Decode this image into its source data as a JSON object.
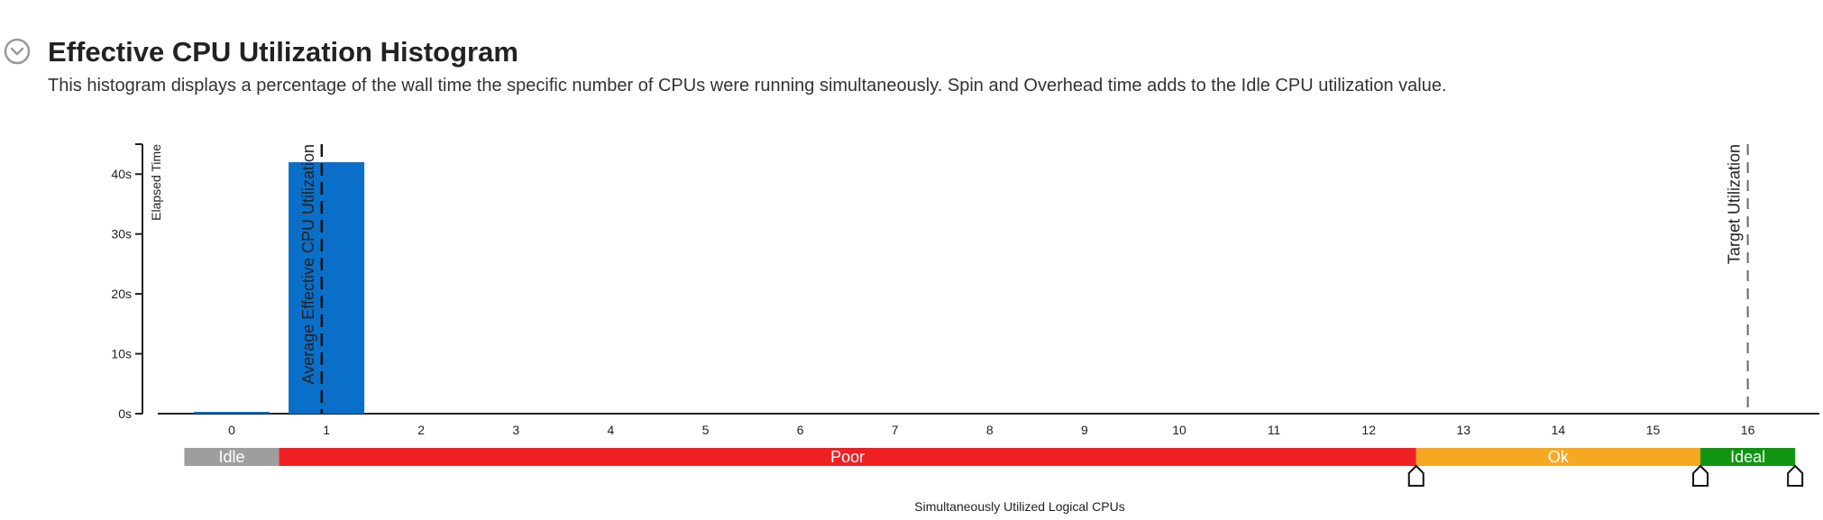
{
  "header": {
    "title": "Effective CPU Utilization Histogram",
    "description": "This histogram displays a percentage of the wall time the specific number of CPUs were running simultaneously. Spin and Overhead time adds to the Idle CPU utilization value."
  },
  "icons": {
    "collapse": "chevron-down-circle-icon"
  },
  "colors": {
    "bar": "#0a6fc8",
    "idle": "#9e9e9e",
    "poor": "#ee2024",
    "ok": "#f7a823",
    "ideal": "#129612"
  },
  "chart_data": {
    "type": "bar",
    "xlabel": "Simultaneously Utilized Logical CPUs",
    "ylabel": "Elapsed Time",
    "categories": [
      "0",
      "1",
      "2",
      "3",
      "4",
      "5",
      "6",
      "7",
      "8",
      "9",
      "10",
      "11",
      "12",
      "13",
      "14",
      "15",
      "16"
    ],
    "values": [
      0.3,
      42,
      0,
      0,
      0,
      0,
      0,
      0,
      0,
      0,
      0,
      0,
      0,
      0,
      0,
      0,
      0
    ],
    "ylim": [
      0,
      45
    ],
    "yticks": [
      {
        "value": 0,
        "label": "0s"
      },
      {
        "value": 10,
        "label": "10s"
      },
      {
        "value": 20,
        "label": "20s"
      },
      {
        "value": 30,
        "label": "30s"
      },
      {
        "value": 40,
        "label": "40s"
      }
    ],
    "reference_lines": [
      {
        "name": "Average Effective CPU Utilization",
        "x": 0.95,
        "style": "dashed-heavy"
      },
      {
        "name": "Target Utilization",
        "x": 16,
        "style": "dashed-light"
      }
    ],
    "bands": [
      {
        "label": "Idle",
        "from": -0.5,
        "to": 0.5,
        "color": "#9e9e9e"
      },
      {
        "label": "Poor",
        "from": 0.5,
        "to": 12.5,
        "color": "#ee2024"
      },
      {
        "label": "Ok",
        "from": 12.5,
        "to": 15.5,
        "color": "#f7a823"
      },
      {
        "label": "Ideal",
        "from": 15.5,
        "to": 16.5,
        "color": "#129612"
      }
    ],
    "band_markers": [
      12.5,
      15.5,
      16.5
    ],
    "grid": false,
    "legend": "none"
  }
}
